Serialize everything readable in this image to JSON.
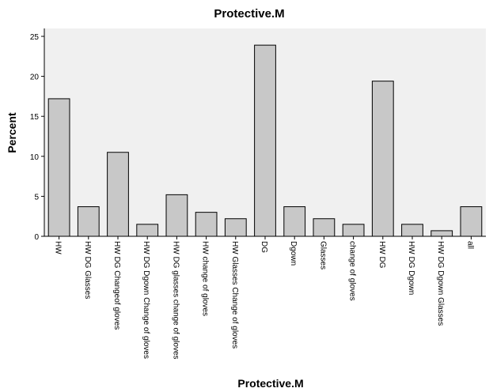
{
  "chart_data": {
    "type": "bar",
    "title": "Protective.M",
    "xlabel": "Protective.M",
    "ylabel": "Percent",
    "ylim": [
      0,
      25
    ],
    "yticks": [
      0,
      5,
      10,
      15,
      20,
      25
    ],
    "grid": false,
    "categories": [
      "HW",
      "HW DG Glasses",
      "HW DG Changeof gloves",
      "HW DG Dgown Change of gloves",
      "HW DG glasses change of gloves",
      "HW change of gloves",
      "HW Glasses Change of gloves",
      "DG",
      "Dgown",
      "Glasses",
      "change of gloves",
      "HW DG",
      "HW DG Dgown",
      "HW DG Dgown Glasses",
      "all"
    ],
    "values": [
      17.2,
      3.7,
      10.5,
      1.5,
      5.2,
      3.0,
      2.2,
      23.9,
      3.7,
      2.2,
      1.5,
      19.4,
      1.5,
      0.7,
      3.7
    ],
    "colors": {
      "bar_fill": "#c8c8c8",
      "plot_background": "#f0f0f0",
      "bar_stroke": "#000000"
    }
  }
}
